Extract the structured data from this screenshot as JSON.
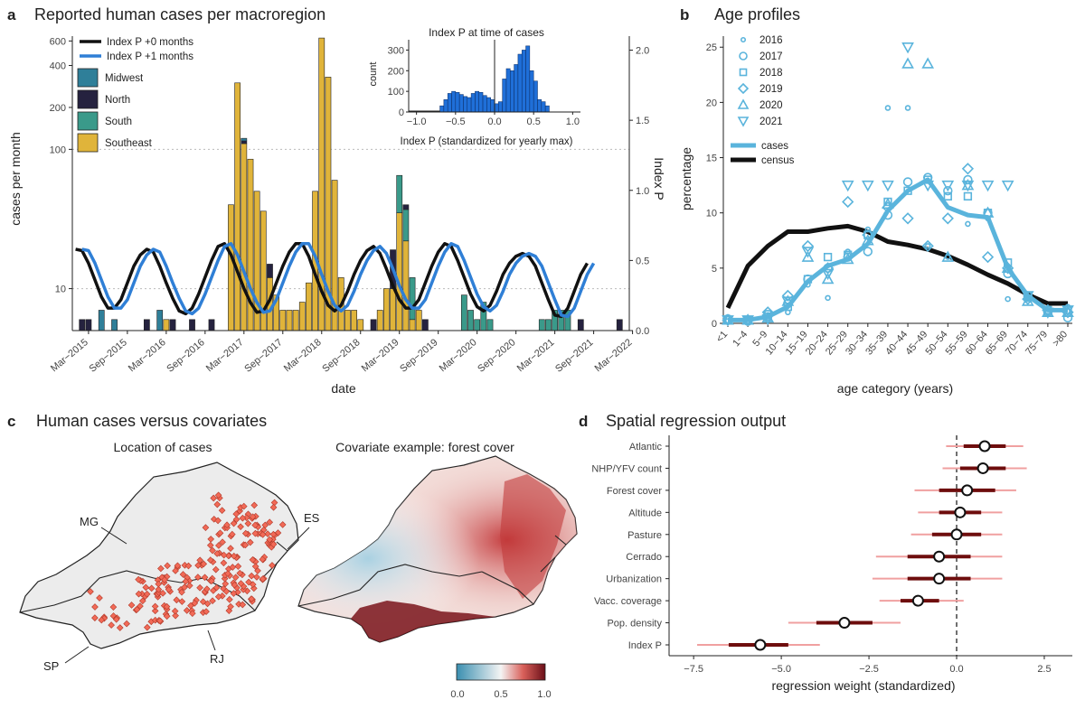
{
  "panels": {
    "a": {
      "letter": "a",
      "title": "Reported human cases per macroregion"
    },
    "b": {
      "letter": "b",
      "title": "Age profiles"
    },
    "c": {
      "letter": "c",
      "title": "Human cases versus covariates",
      "sub_left": "Location of cases",
      "sub_right": "Covariate example: forest cover"
    },
    "d": {
      "letter": "d",
      "title": "Spatial regression output"
    }
  },
  "colors": {
    "midwest": "#2f7f99",
    "north": "#25223f",
    "south": "#3a9a8a",
    "southeast": "#e0b43a",
    "idx0": "#111111",
    "idx1": "#2f7fd6",
    "hist": "#1f6fd8",
    "cases": "#5ab4dc",
    "census": "#111111",
    "regdark": "#6e0d0d",
    "reglight": "#f0a0a0",
    "map_fill": "#ececec",
    "case_pt": "#f26a57"
  },
  "chart_data": [
    {
      "id": "a-main",
      "type": "bar",
      "title": "Reported human cases per macroregion",
      "xlabel": "date",
      "ylabel": "cases per month",
      "y2label": "Index P",
      "yscale": "log",
      "ylim": [
        5,
        650
      ],
      "yticks": [
        "600",
        "400",
        "200",
        "100",
        "10"
      ],
      "ytick_values": [
        600,
        400,
        200,
        100,
        10
      ],
      "y2lim": [
        0,
        2.1
      ],
      "y2ticks": [
        "2.0",
        "1.5",
        "1.0",
        "0.5",
        "0.0"
      ],
      "y2tick_values": [
        2.0,
        1.5,
        1.0,
        0.5,
        0.0
      ],
      "xticks": [
        "Mar−2015",
        "Sep−2015",
        "Mar−2016",
        "Sep−2016",
        "Mar−2017",
        "Sep−2017",
        "Mar−2018",
        "Sep−2018",
        "Mar−2019",
        "Sep−2019",
        "Mar−2020",
        "Sep−2020",
        "Mar−2021",
        "Sep−2021",
        "Mar−2022"
      ],
      "legend": {
        "lines": [
          "Index P +0 months",
          "Index P +1 months"
        ],
        "regions": [
          "Midwest",
          "North",
          "South",
          "Southeast"
        ]
      },
      "bars": [
        {
          "month": 1,
          "Midwest": 0,
          "North": 6,
          "South": 0,
          "Southeast": 0
        },
        {
          "month": 2,
          "Midwest": 0,
          "North": 6,
          "South": 0,
          "Southeast": 0
        },
        {
          "month": 4,
          "Midwest": 7,
          "North": 0,
          "South": 0,
          "Southeast": 0
        },
        {
          "month": 6,
          "Midwest": 6,
          "North": 0,
          "South": 0,
          "Southeast": 0
        },
        {
          "month": 11,
          "Midwest": 0,
          "North": 6,
          "South": 0,
          "Southeast": 0
        },
        {
          "month": 13,
          "Midwest": 7,
          "North": 0,
          "South": 0,
          "Southeast": 0
        },
        {
          "month": 14,
          "Midwest": 0,
          "North": 0,
          "South": 0,
          "Southeast": 6
        },
        {
          "month": 15,
          "Midwest": 0,
          "North": 6,
          "South": 0,
          "Southeast": 0
        },
        {
          "month": 18,
          "Midwest": 0,
          "North": 6,
          "South": 0,
          "Southeast": 0
        },
        {
          "month": 21,
          "Midwest": 0,
          "North": 6,
          "South": 0,
          "Southeast": 0
        },
        {
          "month": 24,
          "Midwest": 0,
          "North": 0,
          "South": 0,
          "Southeast": 40
        },
        {
          "month": 25,
          "Midwest": 0,
          "North": 0,
          "South": 0,
          "Southeast": 300
        },
        {
          "month": 26,
          "Midwest": 5,
          "North": 5,
          "South": 0,
          "Southeast": 110
        },
        {
          "month": 27,
          "Midwest": 0,
          "North": 0,
          "South": 0,
          "Southeast": 85
        },
        {
          "month": 28,
          "Midwest": 0,
          "North": 0,
          "South": 0,
          "Southeast": 50
        },
        {
          "month": 29,
          "Midwest": 0,
          "North": 0,
          "South": 0,
          "Southeast": 36
        },
        {
          "month": 30,
          "Midwest": 0,
          "North": 3,
          "South": 0,
          "Southeast": 12
        },
        {
          "month": 31,
          "Midwest": 0,
          "North": 0,
          "South": 0,
          "Southeast": 9
        },
        {
          "month": 32,
          "Midwest": 0,
          "North": 0,
          "South": 0,
          "Southeast": 7
        },
        {
          "month": 33,
          "Midwest": 0,
          "North": 0,
          "South": 0,
          "Southeast": 7
        },
        {
          "month": 34,
          "Midwest": 0,
          "North": 0,
          "South": 0,
          "Southeast": 7
        },
        {
          "month": 35,
          "Midwest": 0,
          "North": 0,
          "South": 0,
          "Southeast": 8
        },
        {
          "month": 36,
          "Midwest": 0,
          "North": 0,
          "South": 0,
          "Southeast": 11
        },
        {
          "month": 37,
          "Midwest": 0,
          "North": 0,
          "South": 0,
          "Southeast": 50
        },
        {
          "month": 38,
          "Midwest": 0,
          "North": 0,
          "South": 0,
          "Southeast": 630
        },
        {
          "month": 39,
          "Midwest": 0,
          "North": 0,
          "South": 0,
          "Southeast": 330
        },
        {
          "month": 40,
          "Midwest": 0,
          "North": 0,
          "South": 0,
          "Southeast": 60
        },
        {
          "month": 41,
          "Midwest": 0,
          "North": 0,
          "South": 0,
          "Southeast": 12
        },
        {
          "month": 42,
          "Midwest": 0,
          "North": 0,
          "South": 0,
          "Southeast": 7
        },
        {
          "month": 43,
          "Midwest": 0,
          "North": 0,
          "South": 0,
          "Southeast": 7
        },
        {
          "month": 44,
          "Midwest": 0,
          "North": 0,
          "South": 0,
          "Southeast": 6
        },
        {
          "month": 46,
          "Midwest": 0,
          "North": 6,
          "South": 0,
          "Southeast": 0
        },
        {
          "month": 47,
          "Midwest": 0,
          "North": 0,
          "South": 0,
          "Southeast": 7
        },
        {
          "month": 48,
          "Midwest": 0,
          "North": 0,
          "South": 0,
          "Southeast": 10
        },
        {
          "month": 49,
          "Midwest": 0,
          "North": 9,
          "South": 0,
          "Southeast": 10
        },
        {
          "month": 50,
          "Midwest": 0,
          "North": 0,
          "South": 30,
          "Southeast": 35
        },
        {
          "month": 51,
          "Midwest": 0,
          "North": 3,
          "South": 15,
          "Southeast": 22
        },
        {
          "month": 52,
          "Midwest": 0,
          "North": 0,
          "South": 6,
          "Southeast": 6
        },
        {
          "month": 53,
          "Midwest": 0,
          "North": 0,
          "South": 0,
          "Southeast": 7
        },
        {
          "month": 54,
          "Midwest": 0,
          "North": 6,
          "South": 0,
          "Southeast": 0
        },
        {
          "month": 60,
          "Midwest": 0,
          "North": 0,
          "South": 9,
          "Southeast": 0
        },
        {
          "month": 61,
          "Midwest": 0,
          "North": 0,
          "South": 7,
          "Southeast": 0
        },
        {
          "month": 62,
          "Midwest": 0,
          "North": 0,
          "South": 6,
          "Southeast": 0
        },
        {
          "month": 63,
          "Midwest": 0,
          "North": 0,
          "South": 8,
          "Southeast": 0
        },
        {
          "month": 64,
          "Midwest": 0,
          "North": 0,
          "South": 6,
          "Southeast": 0
        },
        {
          "month": 72,
          "Midwest": 0,
          "North": 0,
          "South": 6,
          "Southeast": 0
        },
        {
          "month": 73,
          "Midwest": 0,
          "North": 0,
          "South": 6,
          "Southeast": 0
        },
        {
          "month": 74,
          "Midwest": 0,
          "North": 0,
          "South": 7,
          "Southeast": 0
        },
        {
          "month": 75,
          "Midwest": 0,
          "North": 0,
          "South": 7,
          "Southeast": 0
        },
        {
          "month": 76,
          "Midwest": 0,
          "North": 0,
          "South": 7,
          "Southeast": 0
        },
        {
          "month": 78,
          "Midwest": 0,
          "North": 6,
          "South": 0,
          "Southeast": 0
        },
        {
          "month": 84,
          "Midwest": 0,
          "North": 6,
          "South": 0,
          "Southeast": 0
        }
      ],
      "index_p0": [
        0.58,
        0.57,
        0.48,
        0.36,
        0.24,
        0.16,
        0.16,
        0.22,
        0.34,
        0.46,
        0.54,
        0.58,
        0.56,
        0.46,
        0.34,
        0.23,
        0.14,
        0.12,
        0.16,
        0.26,
        0.38,
        0.5,
        0.6,
        0.62,
        0.54,
        0.42,
        0.3,
        0.2,
        0.13,
        0.14,
        0.22,
        0.34,
        0.46,
        0.56,
        0.62,
        0.62,
        0.53,
        0.4,
        0.28,
        0.18,
        0.14,
        0.18,
        0.28,
        0.4,
        0.5,
        0.57,
        0.6,
        0.55,
        0.44,
        0.32,
        0.22,
        0.16,
        0.16,
        0.22,
        0.34,
        0.46,
        0.56,
        0.62,
        0.6,
        0.5,
        0.38,
        0.26,
        0.17,
        0.14,
        0.18,
        0.28,
        0.4,
        0.48,
        0.53,
        0.55,
        0.53,
        0.46,
        0.34,
        0.22,
        0.11,
        0.1,
        0.16,
        0.28,
        0.4,
        0.48
      ]
    },
    {
      "id": "a-inset",
      "type": "bar",
      "title": "Index P at time of cases",
      "xlabel": "Index P (standardized for yearly max)",
      "ylabel": "count",
      "xlim": [
        -1.1,
        1.1
      ],
      "xticks": [
        "−1.0",
        "−0.5",
        "0.0",
        "0.5",
        "1.0"
      ],
      "xtick_values": [
        -1.0,
        -0.5,
        0.0,
        0.5,
        1.0
      ],
      "ylim": [
        0,
        350
      ],
      "yticks": [
        "300",
        "200",
        "100",
        "0"
      ],
      "ytick_values": [
        300,
        200,
        100,
        0
      ],
      "bin_width": 0.05,
      "bin_start": -0.7,
      "counts": [
        30,
        60,
        90,
        100,
        95,
        85,
        75,
        70,
        90,
        100,
        95,
        80,
        70,
        60,
        40,
        50,
        160,
        210,
        200,
        230,
        280,
        300,
        320,
        200,
        150,
        60,
        50,
        30
      ]
    },
    {
      "id": "b",
      "type": "line",
      "title": "Age profiles",
      "xlabel": "age category (years)",
      "ylabel": "percentage",
      "ylim": [
        0,
        26
      ],
      "yticks": [
        "25",
        "20",
        "15",
        "10",
        "5",
        "0"
      ],
      "ytick_values": [
        25,
        20,
        15,
        10,
        5,
        0
      ],
      "categories": [
        "<1",
        "1−4",
        "5−9",
        "10−14",
        "15−19",
        "20−24",
        "25−29",
        "30−34",
        "35−39",
        "40−44",
        "45−49",
        "50−54",
        "55−59",
        "60−64",
        "65−69",
        "70−74",
        "75−79",
        ">80"
      ],
      "legend_years": [
        "2016",
        "2017",
        "2018",
        "2019",
        "2020",
        "2021"
      ],
      "legend_lines": [
        "cases",
        "census"
      ],
      "cases": [
        0.3,
        0.3,
        0.6,
        1.5,
        3.8,
        5.2,
        5.8,
        7.2,
        10.2,
        12.0,
        13.0,
        10.5,
        9.8,
        9.6,
        5.0,
        2.5,
        1.2,
        1.2
      ],
      "census": [
        1.4,
        5.2,
        7.0,
        8.3,
        8.3,
        8.6,
        8.8,
        8.3,
        7.4,
        7.1,
        6.7,
        6.1,
        5.3,
        4.4,
        3.6,
        2.6,
        1.8,
        1.8
      ],
      "points": {
        "2016": [
          0.2,
          0.2,
          0.5,
          1.0,
          3.5,
          2.3,
          6.5,
          8.5,
          19.5,
          19.5,
          7.0,
          6.0,
          9.0,
          9.5,
          2.2,
          2.2,
          1.0,
          1.5
        ],
        "2017": [
          0.4,
          0.2,
          0.8,
          1.8,
          4.0,
          5.0,
          6.0,
          6.5,
          9.8,
          12.8,
          13.2,
          12.0,
          13.0,
          10.0,
          4.5,
          2.5,
          1.0,
          0.5
        ],
        "2018": [
          0.3,
          0.3,
          0.6,
          1.5,
          4.0,
          6.0,
          6.2,
          8.0,
          11.0,
          12.0,
          13.0,
          11.5,
          11.5,
          10.0,
          5.5,
          2.5,
          1.2,
          1.2
        ],
        "2019": [
          0.3,
          0.3,
          1.0,
          2.5,
          7.0,
          5.0,
          11.0,
          8.0,
          10.5,
          9.5,
          7.0,
          9.5,
          14.0,
          6.0,
          5.0,
          2.2,
          1.2,
          1.0
        ],
        "2020": [
          0.3,
          0.3,
          0.5,
          2.0,
          6.0,
          4.0,
          5.8,
          7.5,
          10.8,
          23.5,
          23.5,
          6.0,
          12.5,
          10.0,
          5.0,
          2.0,
          1.0,
          1.0
        ],
        "2021": [
          0.3,
          0.3,
          0.4,
          2.0,
          6.5,
          4.5,
          12.5,
          12.5,
          12.5,
          25.0,
          12.5,
          12.5,
          12.5,
          12.5,
          12.5,
          2.5,
          1.0,
          1.2
        ]
      }
    },
    {
      "id": "d",
      "type": "scatter",
      "title": "Spatial regression output",
      "xlabel": "regression weight (standardized)",
      "xlim": [
        -8.2,
        3.3
      ],
      "xticks": [
        "−7.5",
        "−5.0",
        "−2.5",
        "0.0",
        "2.5"
      ],
      "xtick_values": [
        -7.5,
        -5.0,
        -2.5,
        0.0,
        2.5
      ],
      "categories": [
        "Atlantic",
        "NHP/YFV count",
        "Forest cover",
        "Altitude",
        "Pasture",
        "Cerrado",
        "Urbanization",
        "Vacc. coverage",
        "Pop. density",
        "Index P"
      ],
      "estimates": [
        0.8,
        0.75,
        0.3,
        0.1,
        0.0,
        -0.5,
        -0.5,
        -1.1,
        -3.2,
        -5.6
      ],
      "ci_inner": [
        [
          0.2,
          1.4
        ],
        [
          0.1,
          1.4
        ],
        [
          -0.5,
          1.1
        ],
        [
          -0.5,
          0.7
        ],
        [
          -0.7,
          0.7
        ],
        [
          -1.4,
          0.4
        ],
        [
          -1.4,
          0.4
        ],
        [
          -1.6,
          -0.5
        ],
        [
          -4.0,
          -2.4
        ],
        [
          -6.5,
          -4.8
        ]
      ],
      "ci_outer": [
        [
          -0.3,
          1.9
        ],
        [
          -0.4,
          2.0
        ],
        [
          -1.2,
          1.7
        ],
        [
          -1.1,
          1.3
        ],
        [
          -1.3,
          1.3
        ],
        [
          -2.3,
          1.3
        ],
        [
          -2.4,
          1.3
        ],
        [
          -2.2,
          0.2
        ],
        [
          -4.8,
          -1.6
        ],
        [
          -7.4,
          -3.9
        ]
      ]
    }
  ],
  "map": {
    "labels": [
      "MG",
      "ES",
      "SP",
      "RJ"
    ],
    "colorbar_ticks": [
      "0.0",
      "0.5",
      "1.0"
    ]
  }
}
